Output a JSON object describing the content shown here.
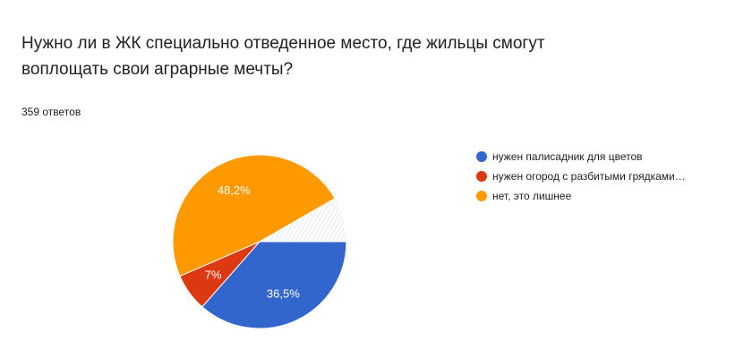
{
  "question": {
    "title": "Нужно ли в ЖК специально отведенное место, где жильцы смогут воплощать свои аграрные мечты?",
    "response_count": "359 ответов"
  },
  "colors": {
    "blue": "#3366cc",
    "red": "#dc3912",
    "orange": "#ff9900",
    "other": "#ffffff"
  },
  "chart_data": {
    "type": "pie",
    "categories": [
      "нужен палисадник для цветов",
      "нужен огород с разбитыми грядками…",
      "нет, это лишнее",
      ""
    ],
    "values": [
      36.5,
      7,
      48.2,
      8.3
    ],
    "slice_labels": [
      "36,5%",
      "7%",
      "48,2%",
      ""
    ],
    "colors": [
      "#3366cc",
      "#dc3912",
      "#ff9900",
      "#ffffff"
    ],
    "start_angle_deg": 90,
    "direction": "clockwise",
    "legend_position": "right"
  },
  "legend": [
    {
      "label": "нужен палисадник для цветов",
      "color": "#3366cc"
    },
    {
      "label": "нужен огород с разбитыми грядками…",
      "color": "#dc3912"
    },
    {
      "label": "нет, это лишнее",
      "color": "#ff9900"
    }
  ]
}
